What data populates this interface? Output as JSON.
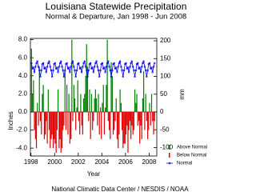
{
  "chart_data": {
    "type": "bar-line",
    "title": "Louisiana Statewide Precipitation",
    "subtitle": "Normal & Departure, Jan 1998 - Jun 2008",
    "xlabel": "Year",
    "ylabel": "Inches",
    "y2label": "mm",
    "source": "National Climatic Data Center / NESDIS / NOAA",
    "xlim": [
      1997.95,
      2008.65
    ],
    "xticks": [
      1998,
      2000,
      2002,
      2004,
      2006,
      2008
    ],
    "ylim": [
      -4.87,
      8.14
    ],
    "yticks": [
      {
        "value": -4,
        "label": "-4.0"
      },
      {
        "value": -2,
        "label": "-2.0"
      },
      {
        "value": 0,
        "label": "0.0"
      },
      {
        "value": 2,
        "label": "2.0"
      },
      {
        "value": 4,
        "label": "4.0"
      },
      {
        "value": 6,
        "label": "6.0"
      },
      {
        "value": 8,
        "label": "8.0"
      }
    ],
    "y2lim": [
      -123.7,
      206.8
    ],
    "y2ticks": [
      -100,
      -50,
      0,
      50,
      100,
      150,
      200
    ],
    "legend": "right",
    "x": [
      1998.04,
      1998.13,
      1998.21,
      1998.29,
      1998.38,
      1998.46,
      1998.54,
      1998.63,
      1998.71,
      1998.79,
      1998.88,
      1998.96,
      1999.04,
      1999.13,
      1999.21,
      1999.29,
      1999.38,
      1999.46,
      1999.54,
      1999.63,
      1999.71,
      1999.79,
      1999.88,
      1999.96,
      2000.04,
      2000.13,
      2000.21,
      2000.29,
      2000.38,
      2000.46,
      2000.54,
      2000.63,
      2000.71,
      2000.79,
      2000.88,
      2000.96,
      2001.04,
      2001.13,
      2001.21,
      2001.29,
      2001.38,
      2001.46,
      2001.54,
      2001.63,
      2001.71,
      2001.79,
      2001.88,
      2001.96,
      2002.04,
      2002.13,
      2002.21,
      2002.29,
      2002.38,
      2002.46,
      2002.54,
      2002.63,
      2002.71,
      2002.79,
      2002.88,
      2002.96,
      2003.04,
      2003.13,
      2003.21,
      2003.29,
      2003.38,
      2003.46,
      2003.54,
      2003.63,
      2003.71,
      2003.79,
      2003.88,
      2003.96,
      2004.04,
      2004.13,
      2004.21,
      2004.29,
      2004.38,
      2004.46,
      2004.54,
      2004.63,
      2004.71,
      2004.79,
      2004.88,
      2004.96,
      2005.04,
      2005.13,
      2005.21,
      2005.29,
      2005.38,
      2005.46,
      2005.54,
      2005.63,
      2005.71,
      2005.79,
      2005.88,
      2005.96,
      2006.04,
      2006.13,
      2006.21,
      2006.29,
      2006.38,
      2006.46,
      2006.54,
      2006.63,
      2006.71,
      2006.79,
      2006.88,
      2006.96,
      2007.04,
      2007.13,
      2007.21,
      2007.29,
      2007.38,
      2007.46,
      2007.54,
      2007.63,
      2007.71,
      2007.79,
      2007.88,
      2007.96,
      2008.04,
      2008.13,
      2008.21,
      2008.29,
      2008.38,
      2008.46
    ],
    "series": [
      {
        "name": "Above Normal",
        "color": "#008000",
        "kind": "bar",
        "values": [
          7.0,
          2.0,
          3.5,
          null,
          null,
          null,
          1.0,
          null,
          5.0,
          null,
          null,
          2.0,
          3.0,
          null,
          null,
          null,
          null,
          2.5,
          null,
          null,
          null,
          null,
          null,
          null,
          null,
          null,
          null,
          2.5,
          null,
          null,
          null,
          null,
          null,
          null,
          4.5,
          null,
          3.0,
          null,
          2.0,
          null,
          null,
          8.0,
          null,
          3.0,
          1.5,
          null,
          0.5,
          3.5,
          null,
          null,
          2.0,
          null,
          null,
          1.5,
          2.0,
          4.0,
          7.5,
          5.0,
          null,
          2.5,
          null,
          2.0,
          null,
          null,
          1.5,
          2.5,
          1.5,
          null,
          2.0,
          null,
          0.5,
          null,
          1.0,
          3.0,
          null,
          0.5,
          3.0,
          8.0,
          null,
          null,
          null,
          5.5,
          4.0,
          null,
          null,
          null,
          1.5,
          null,
          null,
          null,
          2.5,
          1.0,
          null,
          null,
          null,
          null,
          null,
          null,
          null,
          null,
          null,
          null,
          null,
          null,
          null,
          2.5,
          1.0,
          2.0,
          null,
          null,
          null,
          null,
          null,
          1.5,
          4.5,
          null,
          2.0,
          null,
          null,
          null,
          1.0,
          null,
          2.0,
          null,
          null,
          null
        ]
      },
      {
        "name": "Below Normal",
        "color": "#e00000",
        "kind": "bar",
        "values": [
          null,
          null,
          null,
          -2.0,
          -3.0,
          -4.0,
          null,
          -1.5,
          null,
          -1.0,
          -2.5,
          null,
          null,
          -3.0,
          -2.5,
          -1.0,
          -3.5,
          null,
          -2.0,
          -4.0,
          -3.0,
          -2.5,
          -4.0,
          -3.0,
          -3.5,
          -4.5,
          -2.0,
          null,
          -4.0,
          -3.0,
          -4.5,
          -4.0,
          -2.0,
          -1.5,
          null,
          -2.0,
          null,
          -2.5,
          null,
          -3.5,
          -3.0,
          null,
          -1.0,
          null,
          null,
          -2.0,
          null,
          null,
          -1.0,
          -2.5,
          null,
          -1.5,
          -2.5,
          null,
          null,
          null,
          null,
          null,
          -1.0,
          null,
          -3.0,
          null,
          -2.0,
          -1.0,
          null,
          null,
          null,
          -1.5,
          null,
          -2.5,
          null,
          -3.0,
          null,
          null,
          -2.5,
          null,
          null,
          null,
          -1.0,
          -2.0,
          -3.0,
          null,
          null,
          -2.5,
          -2.0,
          -1.0,
          null,
          -3.0,
          -4.0,
          -2.5,
          null,
          null,
          -2.0,
          -4.0,
          -3.5,
          -3.5,
          -2.5,
          -1.5,
          -4.5,
          -2.0,
          -1.0,
          -3.0,
          -1.5,
          -2.5,
          -2.0,
          null,
          null,
          null,
          -1.5,
          -1.0,
          -3.5,
          -1.5,
          -3.0,
          null,
          null,
          -2.0,
          null,
          -1.0,
          -3.0,
          -2.0,
          null,
          -1.5,
          null,
          -1.0,
          -2.5,
          -1.0
        ]
      },
      {
        "name": "Normal",
        "color": "#0000ff",
        "kind": "line",
        "values": [
          5.4,
          4.8,
          4.9,
          4.4,
          5.0,
          5.4,
          5.6,
          5.0,
          4.6,
          3.9,
          4.6,
          5.3,
          5.4,
          4.8,
          4.9,
          4.4,
          5.0,
          5.4,
          5.6,
          5.0,
          4.6,
          3.9,
          4.6,
          5.3,
          5.4,
          4.8,
          4.9,
          4.4,
          5.0,
          5.4,
          5.6,
          5.0,
          4.6,
          3.9,
          4.6,
          5.3,
          5.4,
          4.8,
          4.9,
          4.4,
          5.0,
          5.4,
          5.6,
          5.0,
          4.6,
          3.9,
          4.6,
          5.3,
          5.4,
          4.8,
          4.9,
          4.4,
          5.0,
          5.4,
          5.6,
          5.0,
          4.6,
          3.9,
          4.6,
          5.3,
          5.4,
          4.8,
          4.9,
          4.4,
          5.0,
          5.4,
          5.6,
          5.0,
          4.6,
          3.9,
          4.6,
          5.3,
          5.4,
          4.8,
          4.9,
          4.4,
          5.0,
          5.4,
          5.6,
          5.0,
          4.6,
          3.9,
          4.6,
          5.3,
          5.4,
          4.8,
          4.9,
          4.4,
          5.0,
          5.4,
          5.6,
          5.0,
          4.6,
          3.9,
          4.6,
          5.3,
          5.4,
          4.8,
          4.9,
          4.4,
          5.0,
          5.4,
          5.6,
          5.0,
          4.6,
          3.9,
          4.6,
          5.3,
          5.4,
          4.8,
          4.9,
          4.4,
          5.0,
          5.4,
          5.6,
          5.0,
          4.6,
          3.9,
          4.6,
          5.3,
          5.4,
          4.8,
          4.9,
          4.4,
          5.0,
          5.4
        ]
      }
    ]
  }
}
